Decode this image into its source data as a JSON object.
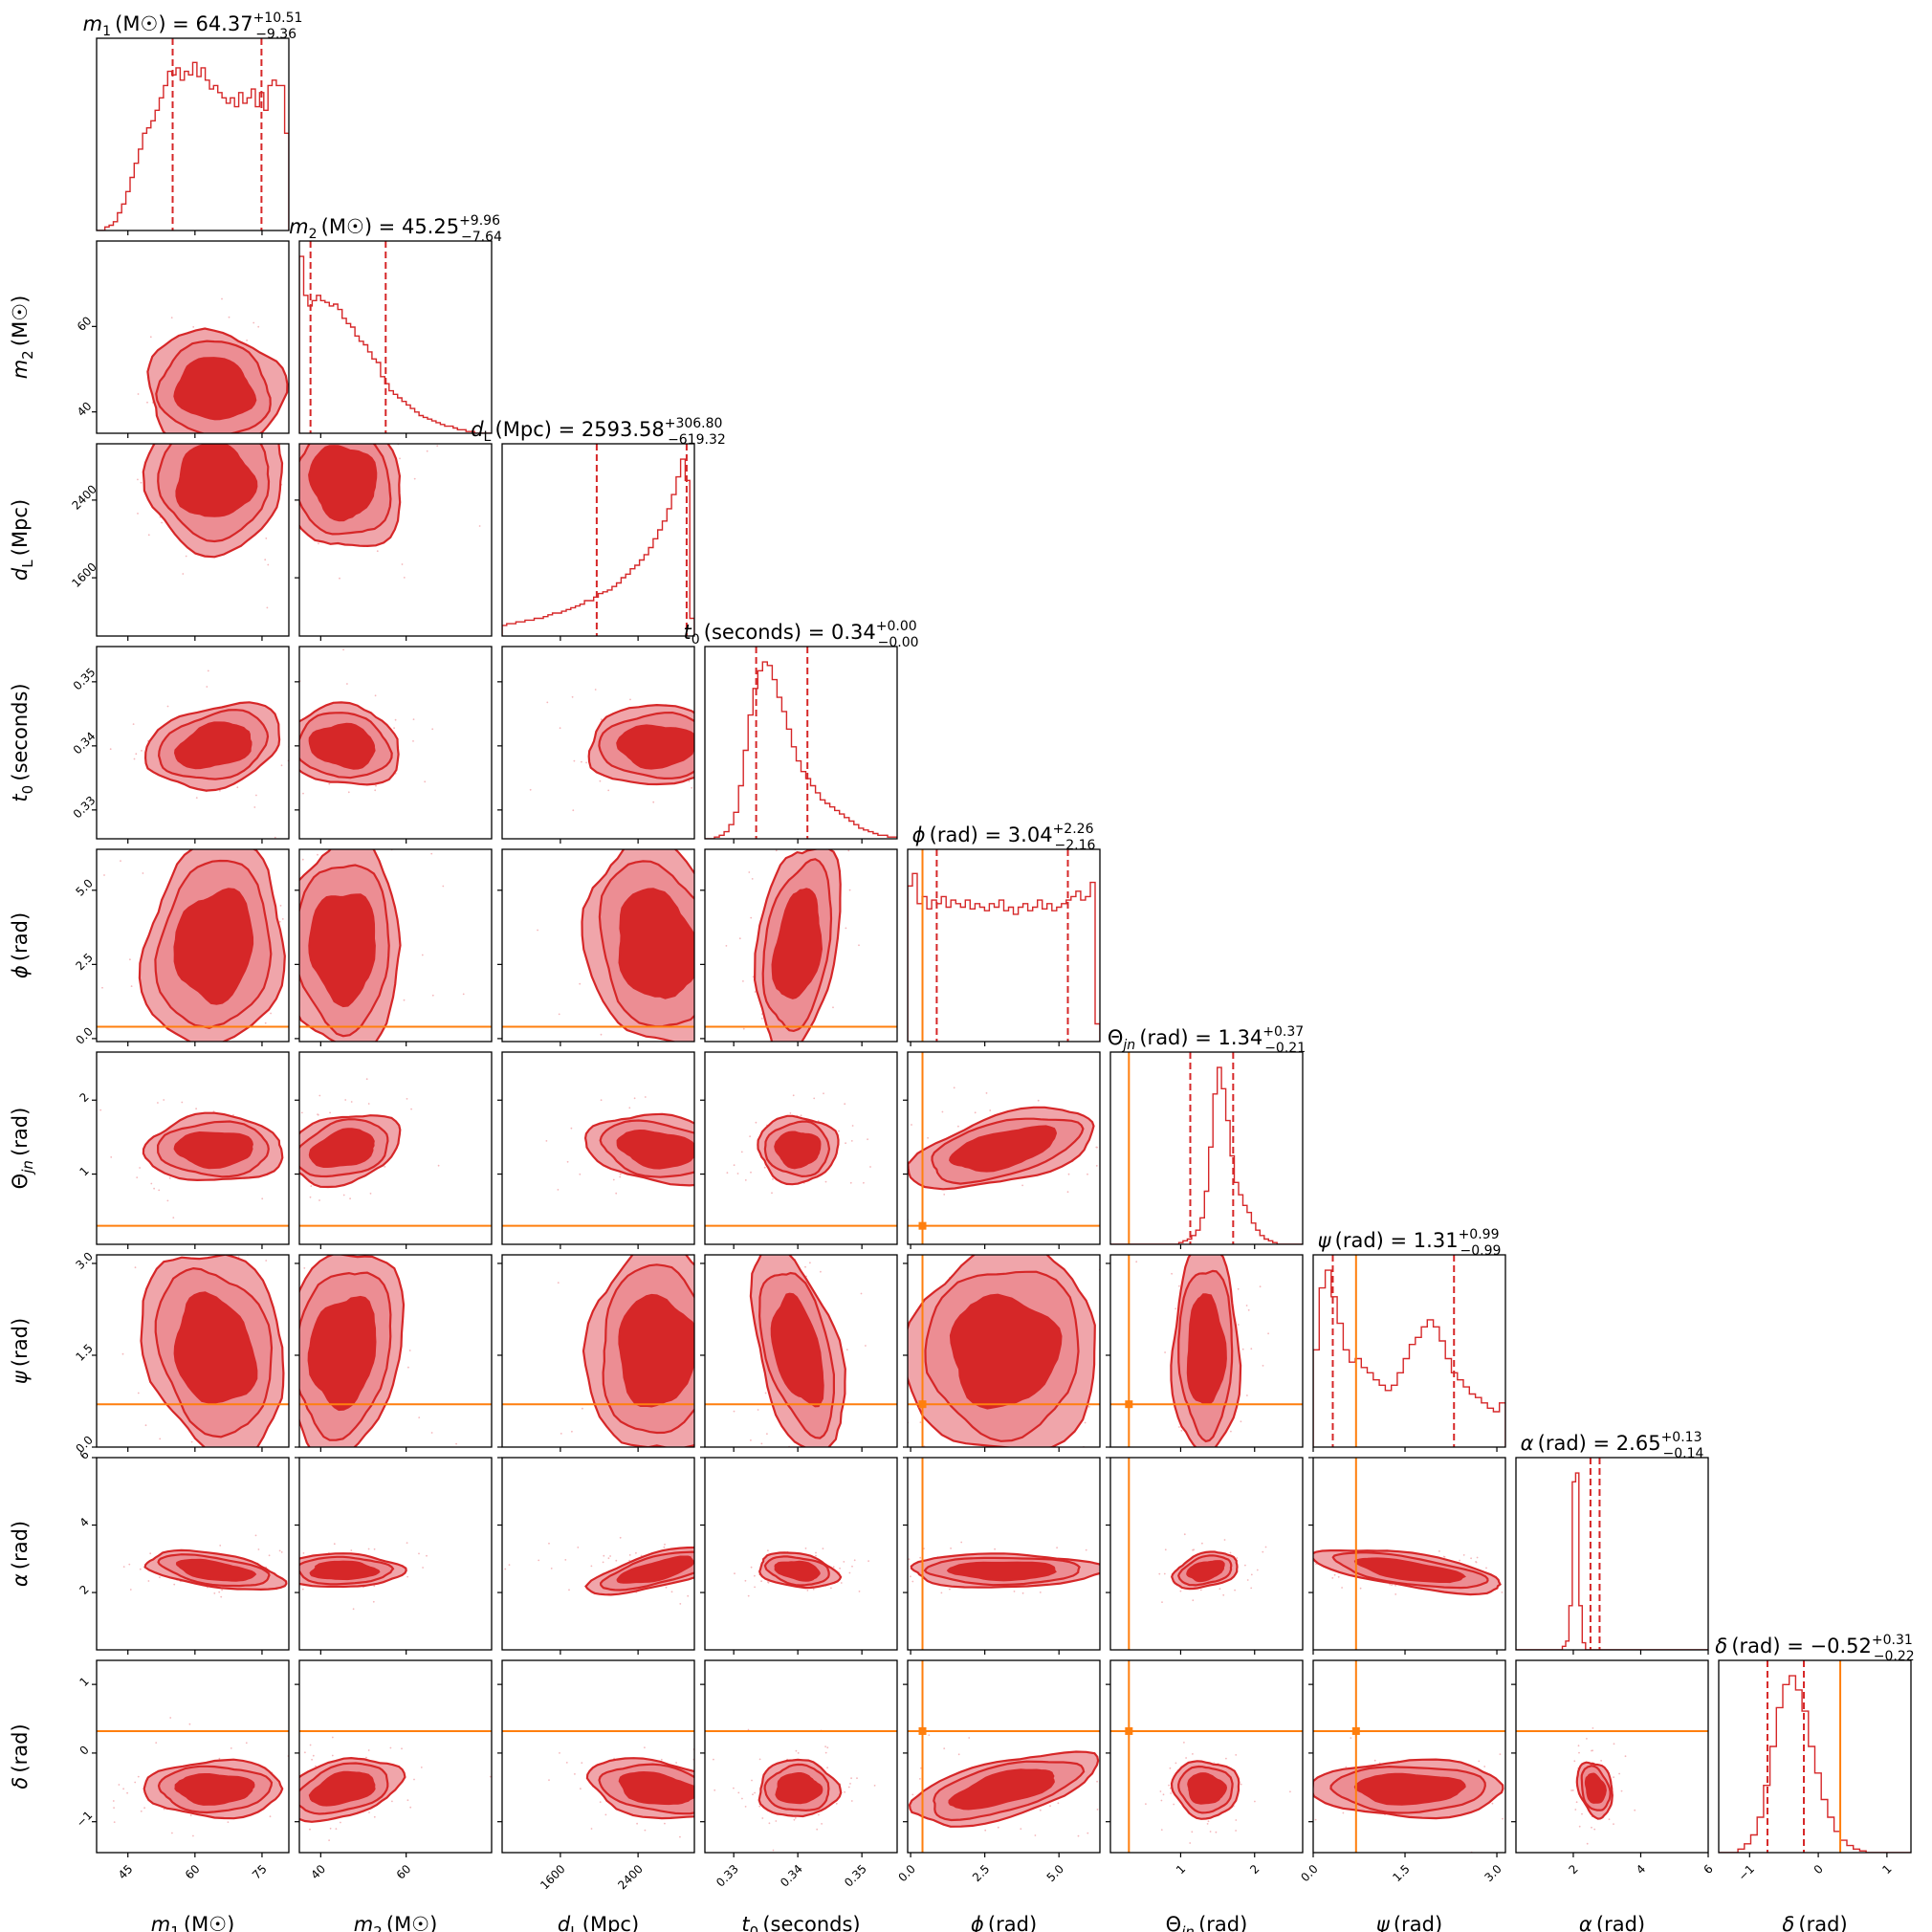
{
  "figure": {
    "type": "corner-plot",
    "colors": {
      "posterior": "#d62728",
      "contour_light": "#f0a5aa",
      "contour_mid": "#ec8d93",
      "truth": "#ff7f0e"
    }
  },
  "chart_data": {
    "type": "corner",
    "parameters": [
      {
        "key": "m1",
        "sym": "m",
        "sub": "1",
        "unit": "(M☉)",
        "label": "m1 (M☉)",
        "median": "64.37",
        "plus": "+10.51",
        "minus": "−9.36",
        "range": [
          38,
          81
        ],
        "ticks": [
          45,
          60,
          75
        ],
        "tick_labels": [
          "45",
          "60",
          "75"
        ],
        "quantiles": [
          55.01,
          74.88
        ],
        "truth": null,
        "hist": [
          0,
          0,
          0.02,
          0.03,
          0.05,
          0.1,
          0.15,
          0.22,
          0.3,
          0.38,
          0.46,
          0.55,
          0.58,
          0.62,
          0.68,
          0.75,
          0.82,
          0.9,
          0.88,
          0.92,
          0.85,
          0.9,
          0.88,
          0.95,
          0.87,
          0.92,
          0.85,
          0.8,
          0.82,
          0.78,
          0.75,
          0.72,
          0.75,
          0.7,
          0.78,
          0.72,
          0.75,
          0.8,
          0.7,
          0.78,
          0.68,
          0.82,
          0.85,
          0.82,
          0.82,
          0.55
        ]
      },
      {
        "key": "m2",
        "sym": "m",
        "sub": "2",
        "unit": "(M☉)",
        "label": "m2 (M☉)",
        "median": "45.25",
        "plus": "+9.96",
        "minus": "−7.64",
        "range": [
          35,
          80
        ],
        "ticks": [
          40,
          60
        ],
        "tick_labels": [
          "40",
          "60"
        ],
        "quantiles": [
          37.61,
          55.21
        ],
        "truth": null,
        "hist": [
          1.0,
          0.78,
          0.72,
          0.75,
          0.78,
          0.75,
          0.74,
          0.72,
          0.73,
          0.7,
          0.65,
          0.62,
          0.6,
          0.55,
          0.52,
          0.5,
          0.46,
          0.42,
          0.4,
          0.32,
          0.28,
          0.24,
          0.22,
          0.2,
          0.18,
          0.16,
          0.14,
          0.12,
          0.1,
          0.09,
          0.08,
          0.07,
          0.06,
          0.05,
          0.04,
          0.04,
          0.03,
          0.02,
          0.02,
          0.01,
          0.01,
          0,
          0,
          0,
          0
        ]
      },
      {
        "key": "dL",
        "sym": "d",
        "sub": "L",
        "unit": "(Mpc)",
        "label": "dL (Mpc)",
        "median": "2593.58",
        "plus": "+306.80",
        "minus": "−619.32",
        "range": [
          1000,
          2980
        ],
        "ticks": [
          1600,
          2400
        ],
        "tick_labels": [
          "1600",
          "2400"
        ],
        "quantiles": [
          1974.26,
          2900.38
        ],
        "truth": null,
        "hist": [
          0.06,
          0.07,
          0.07,
          0.08,
          0.08,
          0.09,
          0.09,
          0.1,
          0.1,
          0.11,
          0.12,
          0.13,
          0.13,
          0.14,
          0.15,
          0.16,
          0.17,
          0.18,
          0.2,
          0.2,
          0.22,
          0.24,
          0.25,
          0.26,
          0.28,
          0.3,
          0.33,
          0.35,
          0.38,
          0.4,
          0.43,
          0.46,
          0.5,
          0.55,
          0.6,
          0.65,
          0.72,
          0.8,
          0.9,
          1.0,
          0.88,
          0.1
        ]
      },
      {
        "key": "t0",
        "sym": "t",
        "sub": "0",
        "unit": "(seconds)",
        "label": "t0 (seconds)",
        "median": "0.34",
        "plus": "+0.00",
        "minus": "−0.00",
        "range": [
          0.3255,
          0.3555
        ],
        "ticks": [
          0.33,
          0.34,
          0.35
        ],
        "tick_labels": [
          "0.33",
          "0.34",
          "0.35"
        ],
        "quantiles": [
          0.3335,
          0.3415
        ],
        "truth": null,
        "hist": [
          0,
          0,
          0.01,
          0.02,
          0.04,
          0.08,
          0.15,
          0.3,
          0.5,
          0.7,
          0.85,
          0.95,
          1.0,
          0.98,
          0.9,
          0.8,
          0.72,
          0.62,
          0.52,
          0.44,
          0.38,
          0.34,
          0.3,
          0.26,
          0.22,
          0.2,
          0.18,
          0.16,
          0.14,
          0.12,
          0.1,
          0.08,
          0.06,
          0.05,
          0.04,
          0.03,
          0.02,
          0.02,
          0.01,
          0.01
        ]
      },
      {
        "key": "phi",
        "sym": "ϕ",
        "sub": "",
        "unit": "(rad)",
        "label": "ϕ (rad)",
        "median": "3.04",
        "plus": "+2.26",
        "minus": "−2.16",
        "range": [
          -0.1,
          6.38
        ],
        "ticks": [
          0.0,
          2.5,
          5.0
        ],
        "tick_labels": [
          "0.0",
          "2.5",
          "5.0"
        ],
        "quantiles": [
          0.88,
          5.3
        ],
        "truth": 0.4,
        "hist": [
          0.88,
          0.95,
          0.78,
          0.82,
          0.75,
          0.8,
          0.78,
          0.82,
          0.76,
          0.8,
          0.78,
          0.76,
          0.8,
          0.75,
          0.78,
          0.76,
          0.74,
          0.78,
          0.76,
          0.8,
          0.74,
          0.76,
          0.72,
          0.76,
          0.78,
          0.74,
          0.76,
          0.8,
          0.75,
          0.78,
          0.74,
          0.76,
          0.78,
          0.8,
          0.82,
          0.85,
          0.8,
          0.82,
          0.9,
          0.1
        ]
      },
      {
        "key": "theta",
        "sym": "Θ",
        "sub": "jn",
        "unit": "(rad)",
        "label": "Θjn (rad)",
        "median": "1.34",
        "plus": "+0.37",
        "minus": "−0.21",
        "range": [
          0.05,
          2.65
        ],
        "ticks": [
          1,
          2
        ],
        "tick_labels": [
          "1",
          "2"
        ],
        "quantiles": [
          1.13,
          1.71
        ],
        "truth": 0.3,
        "hist": [
          0,
          0,
          0,
          0,
          0,
          0,
          0,
          0,
          0,
          0,
          0,
          0,
          0,
          0,
          0,
          0,
          0.01,
          0.02,
          0.03,
          0.05,
          0.08,
          0.15,
          0.3,
          0.55,
          0.85,
          1.0,
          0.88,
          0.7,
          0.5,
          0.35,
          0.28,
          0.22,
          0.18,
          0.12,
          0.08,
          0.05,
          0.03,
          0.02,
          0.01,
          0,
          0,
          0,
          0,
          0,
          0
        ]
      },
      {
        "key": "psi",
        "sym": "ψ",
        "sub": "",
        "unit": "(rad)",
        "label": "ψ (rad)",
        "median": "1.31",
        "plus": "+0.99",
        "minus": "−0.99",
        "range": [
          0.0,
          3.14
        ],
        "ticks": [
          0.0,
          1.5,
          3.0
        ],
        "tick_labels": [
          "0.0",
          "1.5",
          "3.0"
        ],
        "quantiles": [
          0.32,
          2.3
        ],
        "truth": 0.7,
        "hist": [
          0.55,
          0.9,
          1.0,
          0.85,
          0.7,
          0.55,
          0.48,
          0.5,
          0.45,
          0.42,
          0.38,
          0.35,
          0.32,
          0.35,
          0.42,
          0.5,
          0.58,
          0.62,
          0.68,
          0.72,
          0.68,
          0.6,
          0.5,
          0.42,
          0.38,
          0.34,
          0.3,
          0.28,
          0.25,
          0.22,
          0.2,
          0.25
        ]
      },
      {
        "key": "alpha",
        "sym": "α",
        "sub": "",
        "unit": "(rad)",
        "label": "α (rad)",
        "median": "2.65",
        "plus": "+0.13",
        "minus": "−0.14",
        "range": [
          0.3,
          6.0
        ],
        "ticks": [
          2,
          4,
          6
        ],
        "tick_labels": [
          "2",
          "4",
          "6"
        ],
        "quantiles": [
          2.51,
          2.78
        ],
        "truth": null,
        "hist": [
          0,
          0,
          0,
          0,
          0,
          0,
          0,
          0,
          0,
          0,
          0,
          0,
          0,
          0,
          0.02,
          0.05,
          0.25,
          0.95,
          1.0,
          0.25,
          0.04,
          0,
          0,
          0,
          0,
          0,
          0,
          0,
          0,
          0,
          0,
          0,
          0,
          0,
          0,
          0,
          0,
          0,
          0,
          0,
          0,
          0,
          0,
          0,
          0,
          0,
          0,
          0,
          0,
          0,
          0,
          0,
          0,
          0,
          0,
          0,
          0,
          0
        ]
      },
      {
        "key": "delta",
        "sym": "δ",
        "sub": "",
        "unit": "(rad)",
        "label": "δ (rad)",
        "median": "−0.52",
        "plus": "+0.31",
        "minus": "−0.22",
        "range": [
          -1.45,
          1.35
        ],
        "ticks": [
          -1,
          0,
          1
        ],
        "tick_labels": [
          "−1",
          "0",
          "1"
        ],
        "quantiles": [
          -0.74,
          -0.21
        ],
        "truth": 0.32,
        "hist": [
          0,
          0,
          0,
          0.02,
          0.05,
          0.1,
          0.2,
          0.38,
          0.6,
          0.82,
          0.95,
          1.0,
          0.92,
          0.8,
          0.6,
          0.45,
          0.3,
          0.2,
          0.12,
          0.07,
          0.04,
          0.02,
          0.01,
          0,
          0,
          0,
          0,
          0,
          0,
          0
        ]
      }
    ]
  }
}
